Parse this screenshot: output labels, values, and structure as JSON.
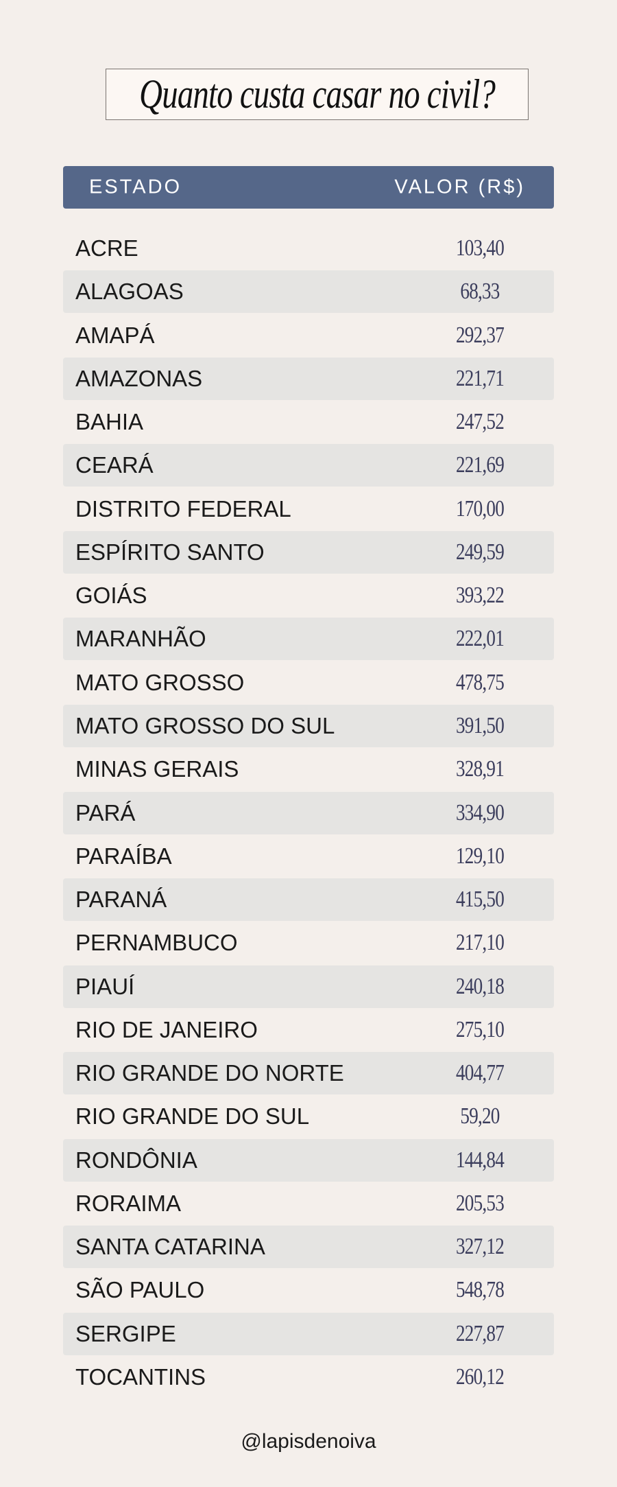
{
  "title": "Quanto custa casar no civil?",
  "colors": {
    "header_bg": "#556789",
    "background": "#f4efeb",
    "stripe": "#e5e4e2",
    "value_text": "#3b3d5c"
  },
  "table": {
    "headers": {
      "state": "ESTADO",
      "value": "VALOR (R$)"
    },
    "rows": [
      {
        "state": "ACRE",
        "value": "103,40"
      },
      {
        "state": "ALAGOAS",
        "value": "68,33"
      },
      {
        "state": "AMAPÁ",
        "value": "292,37"
      },
      {
        "state": "AMAZONAS",
        "value": "221,71"
      },
      {
        "state": "BAHIA",
        "value": "247,52"
      },
      {
        "state": "CEARÁ",
        "value": "221,69"
      },
      {
        "state": "DISTRITO FEDERAL",
        "value": "170,00"
      },
      {
        "state": "ESPÍRITO SANTO",
        "value": "249,59"
      },
      {
        "state": "GOIÁS",
        "value": "393,22"
      },
      {
        "state": "MARANHÃO",
        "value": "222,01"
      },
      {
        "state": "MATO GROSSO",
        "value": "478,75"
      },
      {
        "state": "MATO GROSSO DO SUL",
        "value": "391,50"
      },
      {
        "state": "MINAS GERAIS",
        "value": "328,91"
      },
      {
        "state": "PARÁ",
        "value": "334,90"
      },
      {
        "state": "PARAÍBA",
        "value": "129,10"
      },
      {
        "state": "PARANÁ",
        "value": "415,50"
      },
      {
        "state": "PERNAMBUCO",
        "value": "217,10"
      },
      {
        "state": "PIAUÍ",
        "value": "240,18"
      },
      {
        "state": "RIO DE JANEIRO",
        "value": "275,10"
      },
      {
        "state": "RIO GRANDE DO NORTE",
        "value": "404,77"
      },
      {
        "state": "RIO GRANDE DO SUL",
        "value": "59,20"
      },
      {
        "state": "RONDÔNIA",
        "value": "144,84"
      },
      {
        "state": "RORAIMA",
        "value": "205,53"
      },
      {
        "state": "SANTA CATARINA",
        "value": "327,12"
      },
      {
        "state": "SÃO PAULO",
        "value": "548,78"
      },
      {
        "state": "SERGIPE",
        "value": "227,87"
      },
      {
        "state": "TOCANTINS",
        "value": "260,12"
      }
    ]
  },
  "footer": "@lapisdenoiva"
}
